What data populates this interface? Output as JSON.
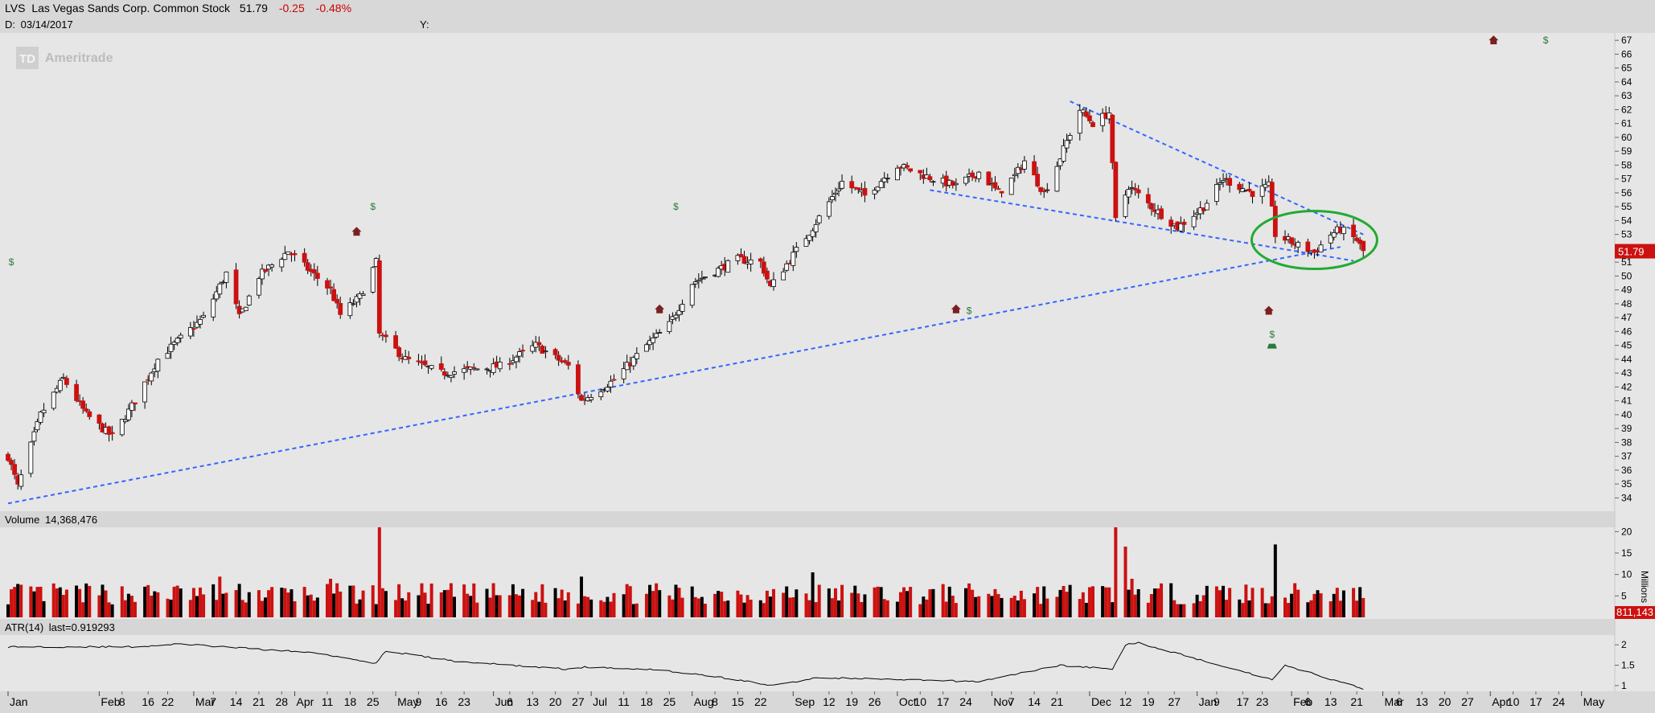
{
  "header": {
    "symbol": "LVS",
    "name": "Las Vegas Sands Corp. Common Stock",
    "last": "51.79",
    "change": "-0.25",
    "change_pct": "-0.48%",
    "date_label": "D:",
    "date": "03/14/2017",
    "y_label": "Y:"
  },
  "watermark": "Ameritrade",
  "colors": {
    "background": "#e6e6e6",
    "band": "#d6d6d6",
    "up_candle": "#ffffff",
    "down_candle": "#cc1111",
    "outline": "#000000",
    "trendline": "#3366ff",
    "highlight_ellipse": "#22aa33",
    "dividend_marker": "#2a7a3a",
    "earnings_marker": "#7a2020",
    "text_negative": "#cc0000"
  },
  "chart_data": [
    {
      "type": "candlestick",
      "title": "LVS Las Vegas Sands Corp. Common Stock",
      "x_start": "2016-01-04",
      "x_end": "2017-05-08",
      "ylim": [
        33.5,
        67.3
      ],
      "y_ticks": [
        34,
        35,
        36,
        37,
        38,
        39,
        40,
        41,
        42,
        43,
        44,
        45,
        46,
        47,
        48,
        49,
        50,
        51,
        52,
        53,
        54,
        55,
        56,
        57,
        58,
        59,
        60,
        61,
        62,
        63,
        64,
        65,
        66,
        67
      ],
      "last_price_label": "51.79",
      "anchors": [
        {
          "date": "2016-01-04",
          "close": 37.0
        },
        {
          "date": "2016-01-07",
          "close": 34.8
        },
        {
          "date": "2016-01-14",
          "close": 40.0
        },
        {
          "date": "2016-01-21",
          "close": 42.6
        },
        {
          "date": "2016-01-28",
          "close": 40.0
        },
        {
          "date": "2016-02-05",
          "close": 38.4
        },
        {
          "date": "2016-02-12",
          "close": 41.0
        },
        {
          "date": "2016-02-19",
          "close": 44.0
        },
        {
          "date": "2016-03-04",
          "close": 47.0
        },
        {
          "date": "2016-03-11",
          "close": 50.2
        },
        {
          "date": "2016-03-15",
          "close": 47.0
        },
        {
          "date": "2016-03-21",
          "close": 50.0
        },
        {
          "date": "2016-03-30",
          "close": 51.8
        },
        {
          "date": "2016-04-05",
          "close": 50.5
        },
        {
          "date": "2016-04-12",
          "close": 49.0
        },
        {
          "date": "2016-04-15",
          "close": 47.2
        },
        {
          "date": "2016-04-21",
          "close": 48.5
        },
        {
          "date": "2016-04-26",
          "close": 51.0
        },
        {
          "date": "2016-04-27",
          "close": 45.8
        },
        {
          "date": "2016-05-05",
          "close": 44.0
        },
        {
          "date": "2016-05-16",
          "close": 43.0
        },
        {
          "date": "2016-06-03",
          "close": 43.5
        },
        {
          "date": "2016-06-14",
          "close": 45.0
        },
        {
          "date": "2016-06-24",
          "close": 43.5
        },
        {
          "date": "2016-06-28",
          "close": 41.0
        },
        {
          "date": "2016-07-08",
          "close": 42.5
        },
        {
          "date": "2016-07-18",
          "close": 45.0
        },
        {
          "date": "2016-07-25",
          "close": 46.5
        },
        {
          "date": "2016-08-01",
          "close": 49.5
        },
        {
          "date": "2016-08-15",
          "close": 51.2
        },
        {
          "date": "2016-08-22",
          "close": 51.0
        },
        {
          "date": "2016-08-25",
          "close": 49.2
        },
        {
          "date": "2016-09-07",
          "close": 53.5
        },
        {
          "date": "2016-09-16",
          "close": 56.8
        },
        {
          "date": "2016-09-23",
          "close": 55.8
        },
        {
          "date": "2016-10-03",
          "close": 58.0
        },
        {
          "date": "2016-10-14",
          "close": 57.0
        },
        {
          "date": "2016-10-21",
          "close": 56.5
        },
        {
          "date": "2016-10-28",
          "close": 57.5
        },
        {
          "date": "2016-11-03",
          "close": 56.0
        },
        {
          "date": "2016-11-08",
          "close": 57.2
        },
        {
          "date": "2016-11-11",
          "close": 58.3
        },
        {
          "date": "2016-11-17",
          "close": 56.0
        },
        {
          "date": "2016-11-21",
          "close": 58.0
        },
        {
          "date": "2016-11-28",
          "close": 62.0
        },
        {
          "date": "2016-12-02",
          "close": 61.0
        },
        {
          "date": "2016-12-07",
          "close": 61.8
        },
        {
          "date": "2016-12-09",
          "close": 54.0
        },
        {
          "date": "2016-12-13",
          "close": 56.5
        },
        {
          "date": "2016-12-20",
          "close": 55.0
        },
        {
          "date": "2016-12-28",
          "close": 53.5
        },
        {
          "date": "2017-01-05",
          "close": 55.0
        },
        {
          "date": "2017-01-11",
          "close": 57.0
        },
        {
          "date": "2017-01-20",
          "close": 56.0
        },
        {
          "date": "2017-01-25",
          "close": 56.5
        },
        {
          "date": "2017-01-27",
          "close": 53.0
        },
        {
          "date": "2017-02-03",
          "close": 52.2
        },
        {
          "date": "2017-02-08",
          "close": 51.7
        },
        {
          "date": "2017-02-13",
          "close": 53.0
        },
        {
          "date": "2017-02-16",
          "close": 53.4
        },
        {
          "date": "2017-02-21",
          "close": 52.6
        },
        {
          "date": "2017-02-23",
          "close": 51.79
        }
      ],
      "trendlines": [
        {
          "from": {
            "date": "2016-01-04",
            "value": 33.6
          },
          "to": {
            "date": "2017-02-16",
            "value": 52.1
          }
        },
        {
          "from": {
            "date": "2016-10-13",
            "value": 56.2
          },
          "to": {
            "date": "2017-02-20",
            "value": 51.1
          }
        },
        {
          "from": {
            "date": "2016-11-25",
            "value": 62.6
          },
          "to": {
            "date": "2017-02-23",
            "value": 53.0
          }
        }
      ],
      "highlight": {
        "center": {
          "date": "2017-02-08",
          "value": 52.6
        },
        "shape": "ellipse"
      },
      "dividend_markers": [
        {
          "date": "2016-01-05",
          "value": 51.0,
          "label": "$"
        },
        {
          "date": "2016-04-25",
          "value": 55.0,
          "label": "$"
        },
        {
          "date": "2016-07-27",
          "value": 55.0,
          "label": "$"
        },
        {
          "date": "2016-10-25",
          "value": 47.5,
          "label": "$"
        },
        {
          "date": "2017-01-26",
          "value": 45.8,
          "label": "$"
        },
        {
          "date": "2017-04-20",
          "value": 67.0,
          "label": "$"
        }
      ],
      "earnings_markers": [
        {
          "date": "2016-04-20",
          "value": 53.2
        },
        {
          "date": "2016-07-22",
          "value": 47.6
        },
        {
          "date": "2016-10-21",
          "value": 47.6
        },
        {
          "date": "2017-01-25",
          "value": 47.5
        },
        {
          "date": "2017-04-04",
          "value": 67.0
        }
      ]
    },
    {
      "type": "bar",
      "title": "Volume",
      "label": "Volume",
      "value_label": "14,368,476",
      "ylabel": "Millions",
      "ylim": [
        0,
        21
      ],
      "y_ticks": [
        5,
        10,
        15,
        20
      ],
      "last_label": "811,143",
      "base_millions": 5.5,
      "spikes": [
        {
          "date": "2016-04-27",
          "value": 21.0
        },
        {
          "date": "2016-12-09",
          "value": 21.0
        },
        {
          "date": "2016-12-12",
          "value": 16.5
        },
        {
          "date": "2017-01-27",
          "value": 17.0
        },
        {
          "date": "2016-09-07",
          "value": 10.5
        },
        {
          "date": "2016-06-28",
          "value": 9.5
        },
        {
          "date": "2016-03-09",
          "value": 9.5
        },
        {
          "date": "2016-04-12",
          "value": 9.0
        },
        {
          "date": "2016-12-14",
          "value": 9.0
        }
      ]
    },
    {
      "type": "line",
      "title": "ATR(14)",
      "label": "ATR(14)",
      "value_label": "last=0.919293",
      "ylim": [
        0.9,
        2.2
      ],
      "y_ticks": [
        "1",
        "1.5",
        "2"
      ],
      "points": [
        {
          "date": "2016-01-04",
          "value": 1.95
        },
        {
          "date": "2016-02-12",
          "value": 1.95
        },
        {
          "date": "2016-02-26",
          "value": 2.02
        },
        {
          "date": "2016-03-10",
          "value": 1.95
        },
        {
          "date": "2016-04-08",
          "value": 1.8
        },
        {
          "date": "2016-04-26",
          "value": 1.55
        },
        {
          "date": "2016-04-29",
          "value": 1.85
        },
        {
          "date": "2016-05-20",
          "value": 1.6
        },
        {
          "date": "2016-06-24",
          "value": 1.4
        },
        {
          "date": "2016-06-29",
          "value": 1.45
        },
        {
          "date": "2016-07-20",
          "value": 1.4
        },
        {
          "date": "2016-08-10",
          "value": 1.2
        },
        {
          "date": "2016-08-26",
          "value": 1.0
        },
        {
          "date": "2016-09-09",
          "value": 1.2
        },
        {
          "date": "2016-09-30",
          "value": 1.15
        },
        {
          "date": "2016-10-28",
          "value": 1.1
        },
        {
          "date": "2016-11-22",
          "value": 1.5
        },
        {
          "date": "2016-12-08",
          "value": 1.4
        },
        {
          "date": "2016-12-12",
          "value": 2.0
        },
        {
          "date": "2016-12-16",
          "value": 2.05
        },
        {
          "date": "2017-01-10",
          "value": 1.5
        },
        {
          "date": "2017-01-26",
          "value": 1.15
        },
        {
          "date": "2017-01-30",
          "value": 1.5
        },
        {
          "date": "2017-02-23",
          "value": 0.92
        }
      ]
    }
  ],
  "x_axis": {
    "months": [
      {
        "date": "2016-01-04",
        "label": "Jan"
      },
      {
        "date": "2016-02-01",
        "label": "Feb"
      },
      {
        "date": "2016-03-01",
        "label": "Mar"
      },
      {
        "date": "2016-04-01",
        "label": "Apr"
      },
      {
        "date": "2016-05-02",
        "label": "May"
      },
      {
        "date": "2016-06-01",
        "label": "Jun"
      },
      {
        "date": "2016-07-01",
        "label": "Jul"
      },
      {
        "date": "2016-08-01",
        "label": "Aug"
      },
      {
        "date": "2016-09-01",
        "label": "Sep"
      },
      {
        "date": "2016-10-03",
        "label": "Oct"
      },
      {
        "date": "2016-11-01",
        "label": "Nov"
      },
      {
        "date": "2016-12-01",
        "label": "Dec"
      },
      {
        "date": "2017-01-03",
        "label": "Jan"
      },
      {
        "date": "2017-02-01",
        "label": "Feb"
      },
      {
        "date": "2017-03-01",
        "label": "Mar"
      },
      {
        "date": "2017-04-03",
        "label": "Apr"
      },
      {
        "date": "2017-05-01",
        "label": "May"
      }
    ],
    "days": [
      {
        "date": "2016-02-08",
        "label": "8"
      },
      {
        "date": "2016-02-16",
        "label": "16"
      },
      {
        "date": "2016-02-22",
        "label": "22"
      },
      {
        "date": "2016-03-07",
        "label": "7"
      },
      {
        "date": "2016-03-14",
        "label": "14"
      },
      {
        "date": "2016-03-21",
        "label": "21"
      },
      {
        "date": "2016-03-28",
        "label": "28"
      },
      {
        "date": "2016-04-11",
        "label": "11"
      },
      {
        "date": "2016-04-18",
        "label": "18"
      },
      {
        "date": "2016-04-25",
        "label": "25"
      },
      {
        "date": "2016-05-09",
        "label": "9"
      },
      {
        "date": "2016-05-16",
        "label": "16"
      },
      {
        "date": "2016-05-23",
        "label": "23"
      },
      {
        "date": "2016-06-06",
        "label": "6"
      },
      {
        "date": "2016-06-13",
        "label": "13"
      },
      {
        "date": "2016-06-20",
        "label": "20"
      },
      {
        "date": "2016-06-27",
        "label": "27"
      },
      {
        "date": "2016-07-11",
        "label": "11"
      },
      {
        "date": "2016-07-18",
        "label": "18"
      },
      {
        "date": "2016-07-25",
        "label": "25"
      },
      {
        "date": "2016-08-08",
        "label": "8"
      },
      {
        "date": "2016-08-15",
        "label": "15"
      },
      {
        "date": "2016-08-22",
        "label": "22"
      },
      {
        "date": "2016-09-12",
        "label": "12"
      },
      {
        "date": "2016-09-19",
        "label": "19"
      },
      {
        "date": "2016-09-26",
        "label": "26"
      },
      {
        "date": "2016-10-10",
        "label": "10"
      },
      {
        "date": "2016-10-17",
        "label": "17"
      },
      {
        "date": "2016-10-24",
        "label": "24"
      },
      {
        "date": "2016-11-07",
        "label": "7"
      },
      {
        "date": "2016-11-14",
        "label": "14"
      },
      {
        "date": "2016-11-21",
        "label": "21"
      },
      {
        "date": "2016-12-12",
        "label": "12"
      },
      {
        "date": "2016-12-19",
        "label": "19"
      },
      {
        "date": "2016-12-27",
        "label": "27"
      },
      {
        "date": "2017-01-09",
        "label": "9"
      },
      {
        "date": "2017-01-17",
        "label": "17"
      },
      {
        "date": "2017-01-23",
        "label": "23"
      },
      {
        "date": "2017-02-06",
        "label": "6"
      },
      {
        "date": "2017-02-13",
        "label": "13"
      },
      {
        "date": "2017-02-21",
        "label": "21"
      },
      {
        "date": "2017-03-06",
        "label": "6"
      },
      {
        "date": "2017-03-13",
        "label": "13"
      },
      {
        "date": "2017-03-20",
        "label": "20"
      },
      {
        "date": "2017-03-27",
        "label": "27"
      },
      {
        "date": "2017-04-10",
        "label": "10"
      },
      {
        "date": "2017-04-17",
        "label": "17"
      },
      {
        "date": "2017-04-24",
        "label": "24"
      }
    ]
  }
}
